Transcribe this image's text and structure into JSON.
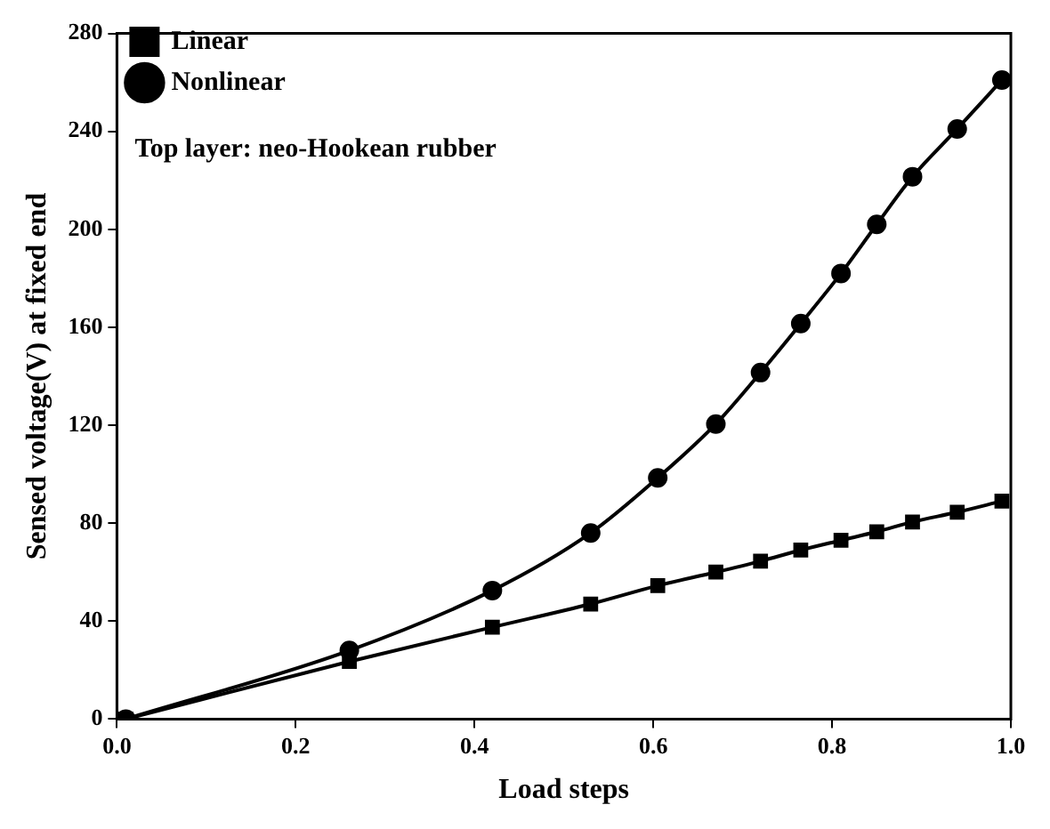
{
  "chart_data": {
    "type": "line",
    "xlabel": "Load steps",
    "ylabel": "Sensed voltage(V) at fixed end",
    "xlim": [
      0,
      1
    ],
    "xticks": [
      {
        "value": 0,
        "label": "0.0"
      },
      {
        "value": 0.2,
        "label": "0.2"
      },
      {
        "value": 0.4,
        "label": "0.4"
      },
      {
        "value": 0.6,
        "label": "0.6"
      },
      {
        "value": 0.8,
        "label": "0.8"
      },
      {
        "value": 1,
        "label": "1.0"
      }
    ],
    "ylim": [
      0,
      280
    ],
    "yticks": [
      0,
      40,
      80,
      120,
      160,
      200,
      240,
      280
    ],
    "grid": false,
    "legend": "top left",
    "annotations": [
      "Top layer: neo-Hookean rubber"
    ],
    "series": [
      {
        "name": "Linear",
        "color": "#000000",
        "marker": "square",
        "x": [
          0.01,
          0.26,
          0.42,
          0.53,
          0.605,
          0.67,
          0.72,
          0.765,
          0.81,
          0.85,
          0.89,
          0.94,
          0.99
        ],
        "values": [
          0,
          23.5,
          37.5,
          47,
          54.5,
          60,
          64.5,
          69,
          73,
          76.5,
          80.5,
          84.5,
          89
        ]
      },
      {
        "name": "Nonlinear",
        "color": "#000000",
        "marker": "circle",
        "x": [
          0.01,
          0.26,
          0.42,
          0.53,
          0.605,
          0.67,
          0.72,
          0.765,
          0.81,
          0.85,
          0.89,
          0.94,
          0.99
        ],
        "values": [
          0,
          28,
          52.5,
          76,
          98.5,
          120.5,
          141.5,
          161.5,
          182,
          202,
          221.5,
          241,
          261
        ]
      }
    ]
  }
}
